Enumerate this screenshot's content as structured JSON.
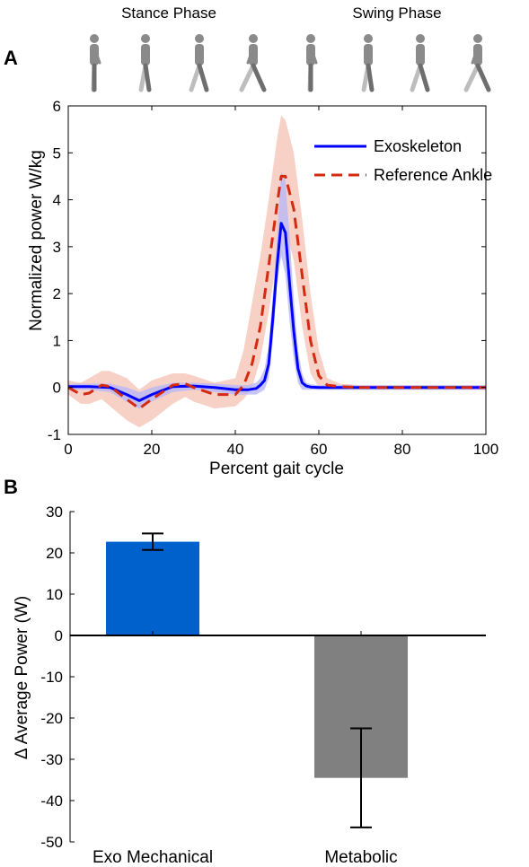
{
  "phase_labels": [
    "Stance Phase",
    "Swing Phase"
  ],
  "panel_labels": [
    "A",
    "B"
  ],
  "colors": {
    "exo": "#0000ff",
    "exo_band": "#b8b8f8",
    "ref": "#d42a10",
    "ref_band": "#f6c8bc",
    "bar_exo": "#0060cc",
    "bar_metabolic": "#808080",
    "walker": "#8a8a8a"
  },
  "chart_data": [
    {
      "type": "line",
      "xlabel": "Percent gait cycle",
      "ylabel": "Normalized power W/kg",
      "xlim": [
        0,
        100
      ],
      "ylim": [
        -1,
        6
      ],
      "xticks": [
        0,
        20,
        40,
        60,
        80,
        100
      ],
      "yticks": [
        -1,
        0,
        1,
        2,
        3,
        4,
        5,
        6
      ],
      "grid": false,
      "legend": "top-right",
      "series": [
        {
          "name": "Exoskeleton",
          "style": "solid",
          "x": [
            0,
            5,
            10,
            14,
            17,
            20,
            25,
            30,
            35,
            40,
            43,
            45,
            46,
            47,
            48,
            49,
            50,
            51,
            52,
            53,
            54,
            55,
            56,
            57,
            58,
            60,
            65,
            70,
            80,
            90,
            100
          ],
          "y": [
            0.02,
            0.02,
            0.0,
            -0.15,
            -0.28,
            -0.15,
            0.02,
            0.03,
            0.0,
            -0.05,
            -0.05,
            -0.02,
            0.05,
            0.15,
            0.5,
            1.5,
            2.6,
            3.5,
            3.3,
            2.2,
            1.2,
            0.4,
            0.1,
            0.03,
            0.01,
            0.0,
            0.0,
            0.0,
            0.0,
            0.0,
            0.0
          ],
          "lower": [
            -0.05,
            -0.05,
            -0.1,
            -0.3,
            -0.45,
            -0.3,
            -0.1,
            -0.05,
            -0.1,
            -0.15,
            -0.15,
            -0.15,
            -0.1,
            -0.05,
            0.2,
            1.0,
            2.2,
            2.8,
            2.4,
            1.4,
            0.6,
            0.1,
            -0.05,
            -0.05,
            -0.05,
            -0.05,
            -0.05,
            -0.05,
            -0.05,
            -0.05,
            -0.05
          ],
          "upper": [
            0.08,
            0.08,
            0.08,
            0.0,
            -0.1,
            0.0,
            0.1,
            0.1,
            0.08,
            0.05,
            0.05,
            0.1,
            0.2,
            0.4,
            0.9,
            2.0,
            3.2,
            4.6,
            4.4,
            3.2,
            1.9,
            0.8,
            0.3,
            0.1,
            0.07,
            0.05,
            0.05,
            0.05,
            0.05,
            0.05,
            0.05
          ]
        },
        {
          "name": "Reference Ankle",
          "style": "dashed",
          "x": [
            0,
            3,
            5,
            8,
            10,
            14,
            17,
            20,
            25,
            28,
            30,
            35,
            40,
            42,
            44,
            46,
            48,
            50,
            51,
            52,
            54,
            56,
            58,
            60,
            62,
            65,
            70,
            80,
            90,
            100
          ],
          "y": [
            0.0,
            -0.15,
            -0.12,
            0.05,
            0.02,
            -0.25,
            -0.45,
            -0.25,
            0.05,
            0.08,
            0.0,
            -0.15,
            -0.15,
            0.05,
            0.5,
            1.3,
            2.6,
            3.9,
            4.5,
            4.5,
            3.8,
            2.4,
            1.0,
            0.25,
            0.05,
            0.02,
            0.0,
            0.0,
            0.0,
            0.0
          ],
          "lower": [
            -0.15,
            -0.35,
            -0.35,
            -0.25,
            -0.4,
            -0.7,
            -0.85,
            -0.7,
            -0.35,
            -0.2,
            -0.3,
            -0.45,
            -0.4,
            -0.25,
            0.0,
            0.6,
            1.6,
            2.8,
            3.3,
            3.4,
            2.7,
            1.3,
            0.3,
            0.0,
            -0.05,
            -0.05,
            -0.05,
            -0.05,
            -0.05,
            -0.05
          ],
          "upper": [
            0.15,
            0.1,
            0.2,
            0.35,
            0.35,
            0.2,
            -0.05,
            0.15,
            0.3,
            0.3,
            0.25,
            0.1,
            0.2,
            0.8,
            1.8,
            2.8,
            4.0,
            5.3,
            5.8,
            5.7,
            5.0,
            3.6,
            2.0,
            0.8,
            0.2,
            0.08,
            0.05,
            0.05,
            0.05,
            0.05
          ]
        }
      ]
    },
    {
      "type": "bar",
      "xlabel": "",
      "ylabel": "Δ Average Power  (W)",
      "categories": [
        "Exo Mechanical",
        "Metabolic"
      ],
      "values": [
        22.7,
        -34.5
      ],
      "errors": [
        2.0,
        12.0
      ],
      "ylim": [
        -50,
        30
      ],
      "yticks": [
        -50,
        -40,
        -30,
        -20,
        -10,
        0,
        10,
        20,
        30
      ],
      "grid": false
    }
  ]
}
